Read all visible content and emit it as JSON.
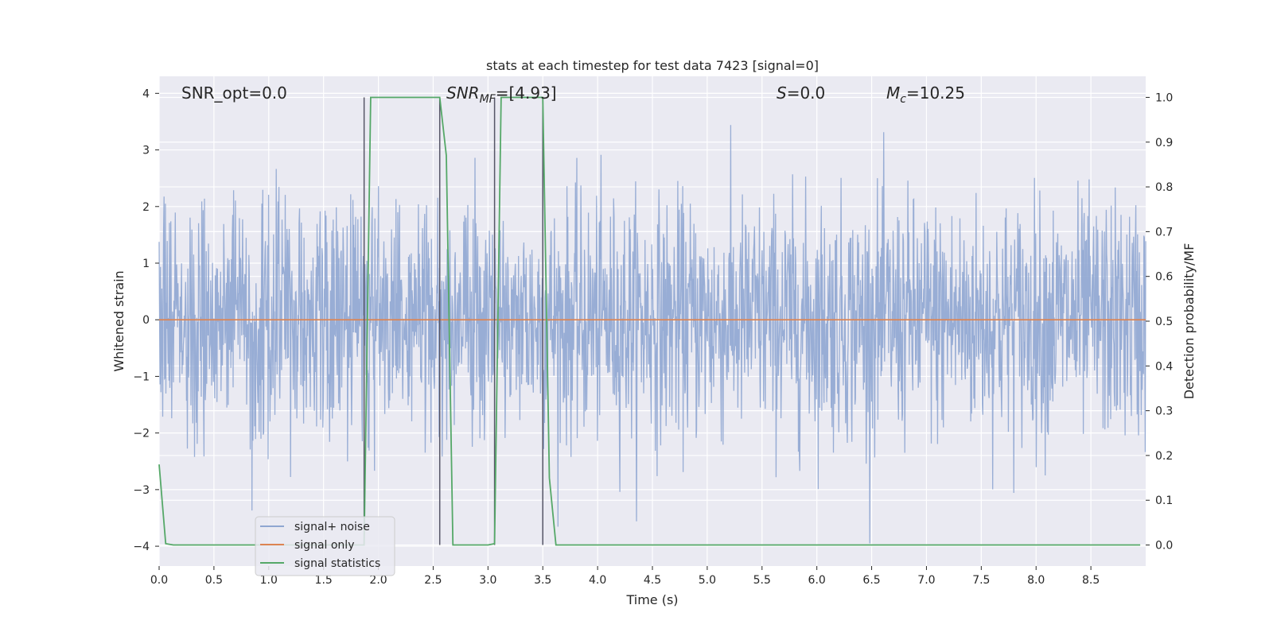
{
  "chart_data": {
    "type": "line",
    "title": "stats at each timestep for test data 7423 [signal=0]",
    "xlabel": "Time (s)",
    "ylabel": "Whitened strain",
    "y2label": "Detection probability/MF",
    "xlim": [
      0,
      9.0
    ],
    "ylim": [
      -4.35,
      4.3
    ],
    "y2lim": [
      -0.047,
      1.047
    ],
    "x_ticks": [
      0.0,
      0.5,
      1.0,
      1.5,
      2.0,
      2.5,
      3.0,
      3.5,
      4.0,
      4.5,
      5.0,
      5.5,
      6.0,
      6.5,
      7.0,
      7.5,
      8.0,
      8.5
    ],
    "x_tick_labels": [
      "0.0",
      "0.5",
      "1.0",
      "1.5",
      "2.0",
      "2.5",
      "3.0",
      "3.5",
      "4.0",
      "4.5",
      "5.0",
      "5.5",
      "6.0",
      "6.5",
      "7.0",
      "7.5",
      "8.0",
      "8.5"
    ],
    "y_ticks": [
      4,
      3,
      2,
      1,
      0,
      -1,
      -2,
      -3,
      -4
    ],
    "y_tick_labels": [
      "4",
      "3",
      "2",
      "1",
      "0",
      "−1",
      "−2",
      "−3",
      "−4"
    ],
    "y2_ticks": [
      1.0,
      0.9,
      0.8,
      0.7,
      0.6,
      0.5,
      0.4,
      0.3,
      0.2,
      0.1,
      0.0
    ],
    "y2_tick_labels": [
      "1.0",
      "0.9",
      "0.8",
      "0.7",
      "0.6",
      "0.5",
      "0.4",
      "0.3",
      "0.2",
      "0.1",
      "0.0"
    ],
    "grid": true,
    "legend_placement": "lower-left",
    "annotations": {
      "snr_opt": "SNR_opt=0.0",
      "snr_mf_main": "SNR",
      "snr_mf_sub": "MF",
      "snr_mf_rest": "=[4.93]",
      "s_main": "S",
      "s_rest": "=0.0",
      "mc_main": "M",
      "mc_sub": "c",
      "mc_rest": "=10.25"
    },
    "vertical_lines_x": [
      1.87,
      2.56,
      3.06,
      3.5
    ],
    "series": [
      {
        "name": "signal+ noise",
        "color": "#8fa6d1",
        "axis": "left",
        "kind": "noise",
        "x_range": [
          0,
          9.0
        ],
        "approx_std": 1.0,
        "sample_count": 2200
      },
      {
        "name": "signal only",
        "color": "#dd8452",
        "axis": "left",
        "x": [
          0,
          9.0
        ],
        "y": [
          0,
          0
        ]
      },
      {
        "name": "signal statistics",
        "color": "#55a868",
        "axis": "right",
        "x": [
          0.0,
          0.06,
          0.13,
          1.87,
          1.93,
          2.56,
          2.62,
          2.68,
          3.0,
          3.06,
          3.12,
          3.5,
          3.56,
          3.62,
          8.95
        ],
        "y": [
          0.18,
          0.003,
          0.0,
          0.0,
          1.0,
          1.0,
          0.87,
          0.0,
          0.0,
          0.003,
          1.0,
          1.0,
          0.15,
          0.0,
          0.0
        ]
      }
    ]
  }
}
